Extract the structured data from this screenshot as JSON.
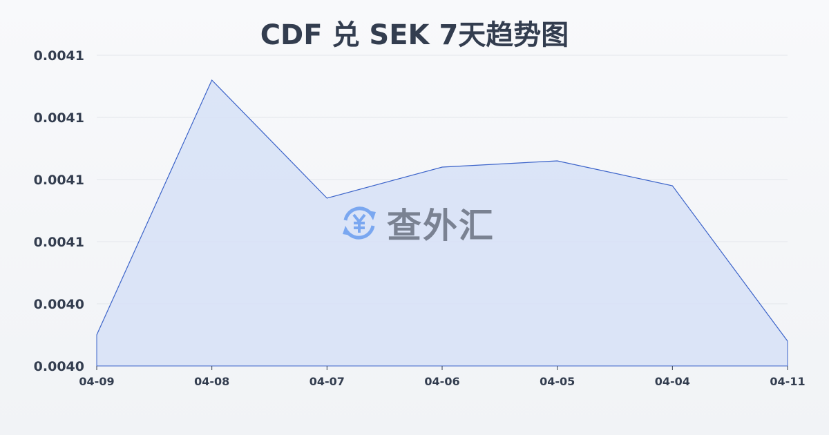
{
  "title": "CDF 兑 SEK 7天趋势图",
  "watermark": {
    "text": "查外汇",
    "icon": "yuan-exchange-icon",
    "icon_color": "#7aa7f0",
    "text_color": "#7a8292"
  },
  "chart_data": {
    "type": "area",
    "title": "CDF 兑 SEK 7天趋势图",
    "xlabel": "",
    "ylabel": "",
    "categories": [
      "04-09",
      "04-08",
      "04-07",
      "04-06",
      "04-05",
      "04-04",
      "04-11"
    ],
    "values": [
      0.004035,
      0.004076,
      0.004057,
      0.004062,
      0.004063,
      0.004059,
      0.004034
    ],
    "ylim": [
      0.00403,
      0.00408
    ],
    "yticks": [
      0.00403,
      0.00404,
      0.00405,
      0.00406,
      0.00407,
      0.00408
    ],
    "ytick_labels": [
      "0.0040",
      "0.0040",
      "0.0041",
      "0.0041",
      "0.0041",
      "0.0041"
    ],
    "grid": true,
    "line_color": "#3a62c9",
    "fill_color": "#d4e0f6"
  }
}
